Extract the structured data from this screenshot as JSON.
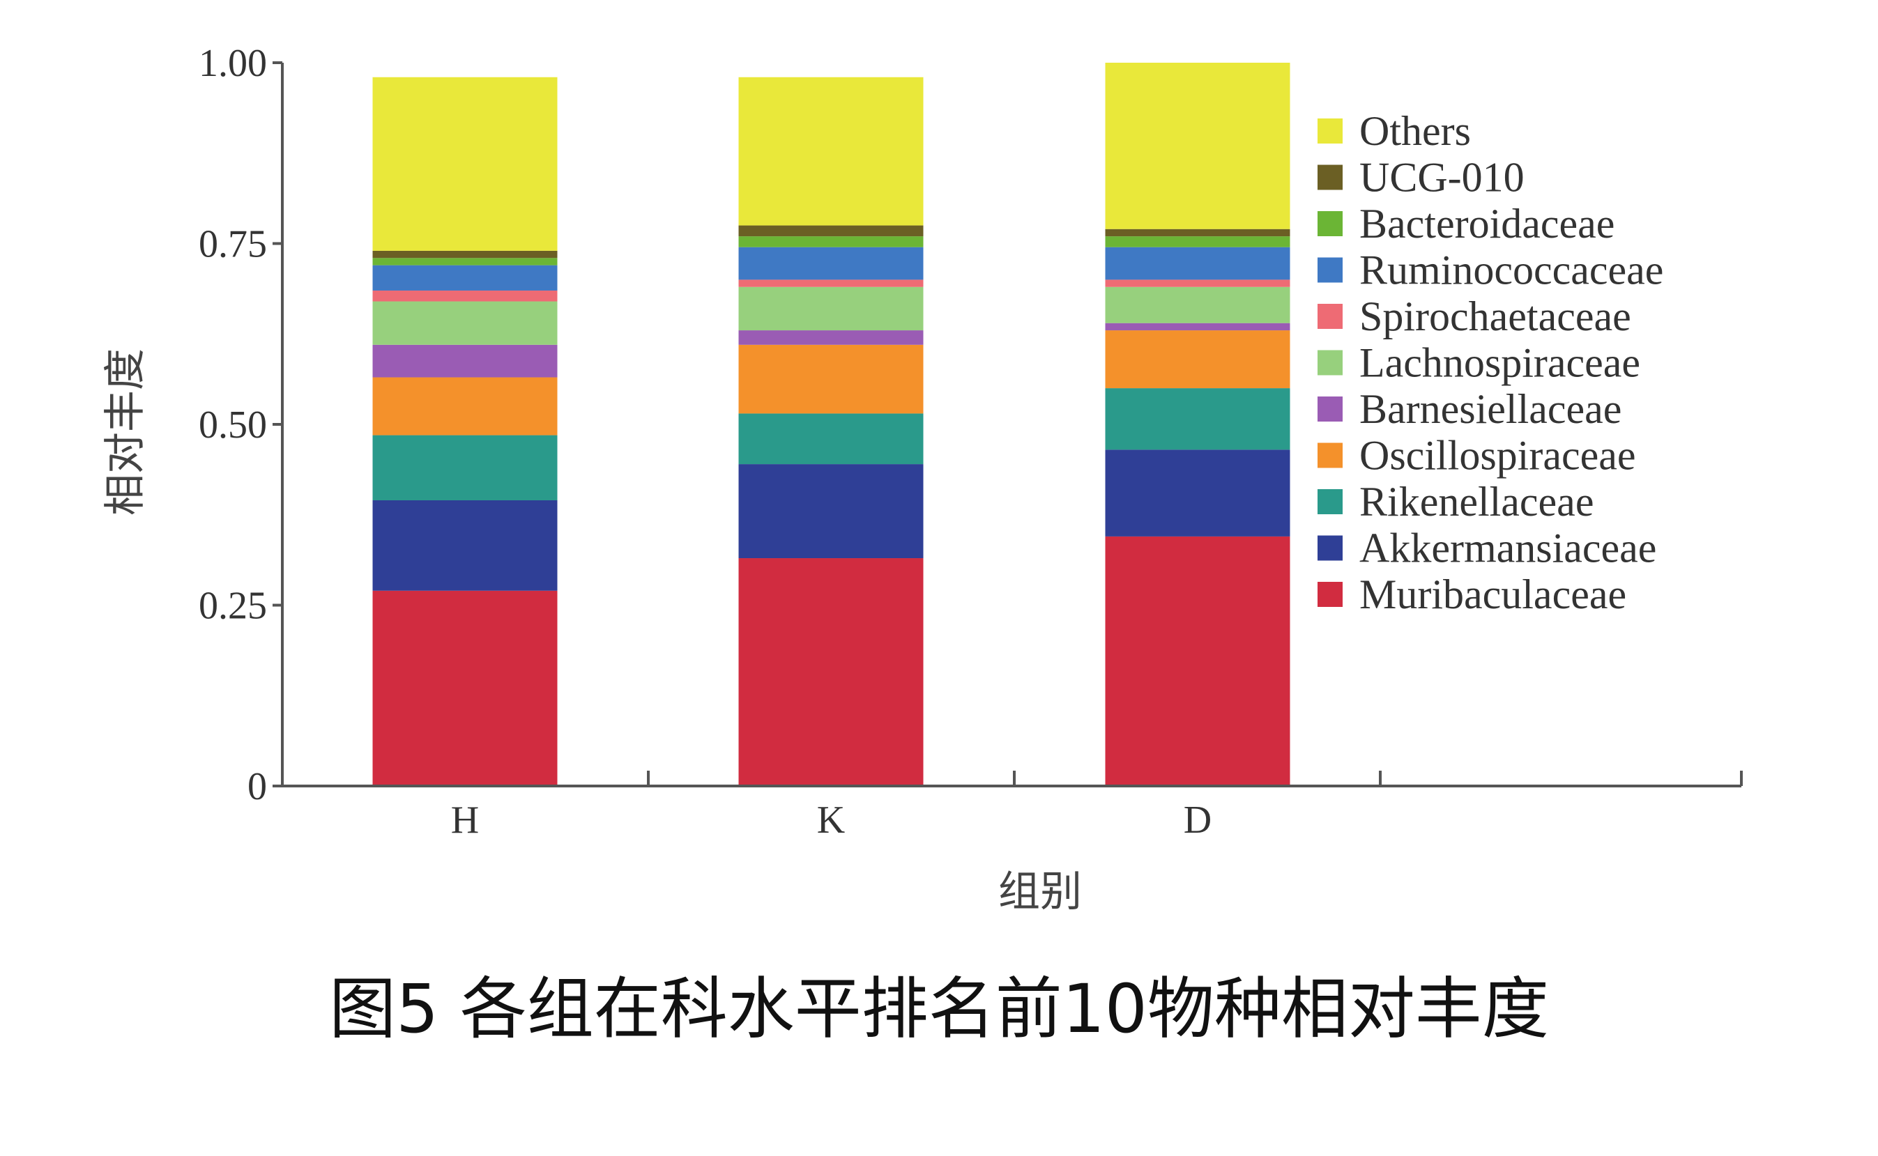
{
  "caption": "图5 各组在科水平排名前10物种相对丰度",
  "chart_data": {
    "type": "bar",
    "stacked": true,
    "categories": [
      "H",
      "K",
      "D"
    ],
    "xlabel": "组别",
    "ylabel": "相对丰度",
    "ylim": [
      0,
      1.0
    ],
    "yticks": [
      "0",
      "0.25",
      "0.50",
      "0.75",
      "1.00"
    ],
    "legend_position": "right",
    "series": [
      {
        "name": "Muribaculaceae",
        "color": "#d12c40",
        "values": [
          0.27,
          0.315,
          0.345
        ]
      },
      {
        "name": "Akkermansiaceae",
        "color": "#2f3f96",
        "values": [
          0.125,
          0.13,
          0.12
        ]
      },
      {
        "name": "Rikenellaceae",
        "color": "#2a9a8b",
        "values": [
          0.09,
          0.07,
          0.085
        ]
      },
      {
        "name": "Oscillospiraceae",
        "color": "#f4912b",
        "values": [
          0.08,
          0.095,
          0.08
        ]
      },
      {
        "name": "Barnesiellaceae",
        "color": "#9a5cb4",
        "values": [
          0.045,
          0.02,
          0.01
        ]
      },
      {
        "name": "Lachnospiraceae",
        "color": "#97d07d",
        "values": [
          0.06,
          0.06,
          0.05
        ]
      },
      {
        "name": "Spirochaetaceae",
        "color": "#ee6b74",
        "values": [
          0.015,
          0.01,
          0.01
        ]
      },
      {
        "name": "Ruminococcaceae",
        "color": "#3f79c4",
        "values": [
          0.035,
          0.045,
          0.045
        ]
      },
      {
        "name": "Bacteroidaceae",
        "color": "#6bb535",
        "values": [
          0.01,
          0.015,
          0.015
        ]
      },
      {
        "name": "UCG-010",
        "color": "#6b5f24",
        "values": [
          0.01,
          0.015,
          0.01
        ]
      },
      {
        "name": "Others",
        "color": "#e9e83a",
        "values": [
          0.24,
          0.205,
          0.23
        ]
      }
    ]
  }
}
